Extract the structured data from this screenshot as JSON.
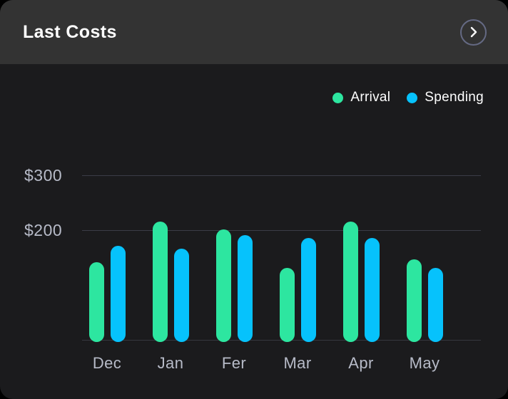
{
  "card": {
    "title": "Last Costs",
    "header_action": "chevron-right"
  },
  "colors": {
    "outer_background": "#000000",
    "card_background": "#1b1b1d",
    "header_background": "#333333",
    "title_text": "#ffffff",
    "legend_text": "#ffffff",
    "axis_text": "#b7bbc8",
    "gridline": "#3b3d47",
    "chevron_ring": "#656a84",
    "arrival": "#2de6a0",
    "spending": "#06c2fc"
  },
  "chart_data": {
    "type": "bar",
    "title": "Last Costs",
    "categories": [
      "Dec",
      "Jan",
      "Fer",
      "Mar",
      "Apr",
      "May"
    ],
    "series": [
      {
        "name": "Arrival",
        "color": "#2de6a0",
        "values": [
          145,
          220,
          205,
          135,
          220,
          150
        ]
      },
      {
        "name": "Spending",
        "color": "#06c2fc",
        "values": [
          175,
          170,
          195,
          190,
          190,
          135
        ]
      }
    ],
    "yticks": [
      {
        "label": "$300",
        "value": 300
      },
      {
        "label": "$200",
        "value": 200
      }
    ],
    "ylim": [
      0,
      300
    ],
    "ytick_prefix": "$",
    "grid": "horizontal",
    "legend_position": "top-right"
  }
}
